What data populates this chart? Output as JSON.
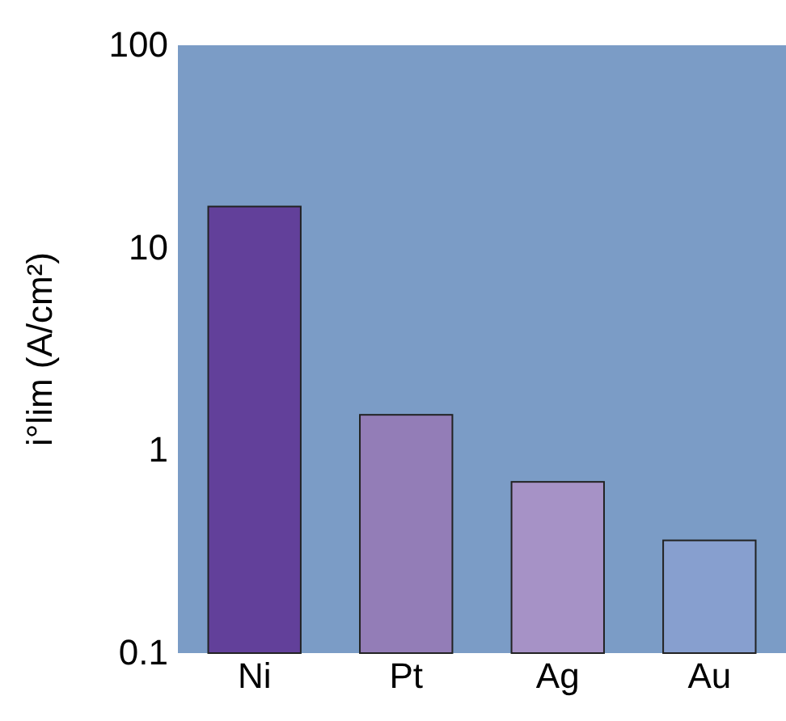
{
  "chart_data": {
    "type": "bar",
    "ylabel": "i°lim (A/cm²)",
    "categories": [
      "Ni",
      "Pt",
      "Ag",
      "Au"
    ],
    "values": [
      16,
      1.5,
      0.7,
      0.36
    ],
    "colors": [
      "#62409a",
      "#937db7",
      "#a692c6",
      "#879fcf"
    ],
    "log": true,
    "ylim": [
      0.1,
      100
    ],
    "yticks": [
      0.1,
      1,
      10,
      100
    ],
    "grid": false
  }
}
